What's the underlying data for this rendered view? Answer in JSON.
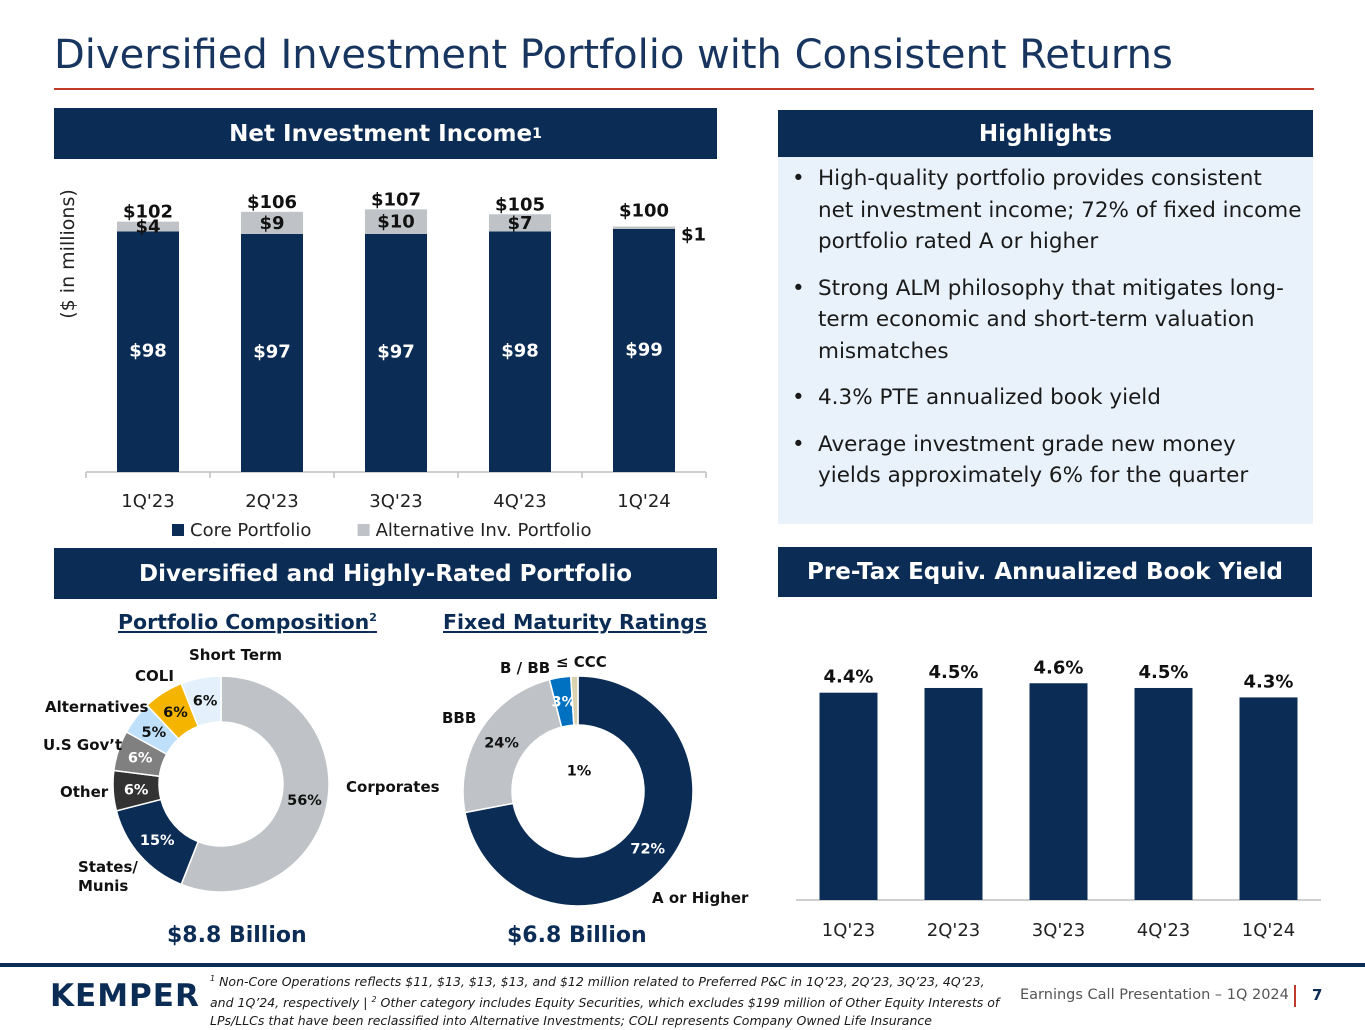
{
  "slide": {
    "title": "Diversified Investment Portfolio with Consistent Returns",
    "page_number": "7",
    "footer_text": "Earnings Call Presentation – 1Q 2024",
    "logo_text": "KEMPER",
    "footnote_1": "Non-Core Operations reflects $11, $13, $13, $13, and $12 million related to Preferred P&C in 1Q’23, 2Q’23, 3Q’23, 4Q’23, and 1Q’24, respectively | ",
    "footnote_2": "Other category includes Equity Securities, which excludes $199 million of Other Equity Interests of LPs/LLCs that have been reclassified into Alternative Investments; COLI represents Company Owned Life Insurance",
    "footnote_sup_1": "1",
    "footnote_sup_2": "2"
  },
  "sections": {
    "nii_title": "Net Investment Income",
    "nii_sup": "1",
    "highlights_title": "Highlights",
    "portfolio_title": "Diversified and Highly-Rated Portfolio",
    "yield_title": "Pre-Tax Equiv. Annualized Book Yield"
  },
  "highlights": [
    "High-quality portfolio provides consistent net investment income; 72% of fixed income portfolio rated A or higher",
    "Strong ALM philosophy that mitigates long-term economic and short-term valuation mismatches",
    "4.3% PTE annualized book yield",
    "Average investment grade new money yields approximately 6% for the quarter"
  ],
  "colors": {
    "navy": "#0b2c55",
    "gray": "#bfc3c7",
    "red_accent": "#c0392b",
    "light_blue_bg": "#e9f1fb"
  },
  "chart_data": [
    {
      "type": "bar",
      "stacked": true,
      "categories": [
        "1Q'23",
        "2Q'23",
        "3Q'23",
        "4Q'23",
        "1Q'24"
      ],
      "series": [
        {
          "name": "Core Portfolio",
          "values": [
            98,
            97,
            97,
            98,
            99
          ],
          "labels": [
            "$98",
            "$97",
            "$97",
            "$98",
            "$99"
          ],
          "color": "#0b2c55"
        },
        {
          "name": "Alternative Inv. Portfolio",
          "values": [
            4,
            9,
            10,
            7,
            1
          ],
          "labels": [
            "$4",
            "$9",
            "$10",
            "$7",
            "$1"
          ],
          "color": "#bfc3c7"
        }
      ],
      "totals": [
        "$102",
        "$106",
        "$107",
        "$105",
        "$100"
      ],
      "ylabel": "($ in millions)",
      "ylim": [
        0,
        110
      ],
      "legend": "bottom"
    },
    {
      "type": "pie",
      "donut": true,
      "title": "Portfolio Composition",
      "title_sup": "2",
      "total": "$8.8 Billion",
      "slices": [
        {
          "name": "Corporates",
          "value": 56,
          "label": "56%",
          "color": "#bfc3c7",
          "text_color": "#111111"
        },
        {
          "name": "States/ Munis",
          "value": 15,
          "label": "15%",
          "color": "#0b2c55",
          "text_color": "#ffffff"
        },
        {
          "name": "Other",
          "value": 6,
          "label": "6%",
          "color": "#333333",
          "text_color": "#ffffff"
        },
        {
          "name": "U.S Gov’t",
          "value": 6,
          "label": "6%",
          "color": "#808080",
          "text_color": "#ffffff"
        },
        {
          "name": "Alternatives",
          "value": 5,
          "label": "5%",
          "color": "#bfe0fb",
          "text_color": "#111111"
        },
        {
          "name": "COLI",
          "value": 6,
          "label": "6%",
          "color": "#f5b400",
          "text_color": "#111111"
        },
        {
          "name": "Short Term",
          "value": 6,
          "label": "6%",
          "color": "#e4f1fc",
          "text_color": "#111111"
        }
      ]
    },
    {
      "type": "pie",
      "donut": true,
      "title": "Fixed Maturity Ratings",
      "total": "$6.8 Billion",
      "slices": [
        {
          "name": "A or Higher",
          "value": 72,
          "label": "72%",
          "color": "#0b2c55",
          "text_color": "#ffffff"
        },
        {
          "name": "BBB",
          "value": 24,
          "label": "24%",
          "color": "#bfc3c7",
          "text_color": "#111111"
        },
        {
          "name": "B / BB",
          "value": 3,
          "label": "3%",
          "color": "#0070c0",
          "text_color": "#ffffff"
        },
        {
          "name": "≤ CCC",
          "value": 1,
          "label": "1%",
          "color": "#d9d2b0",
          "text_color": "#111111"
        }
      ]
    },
    {
      "type": "bar",
      "categories": [
        "1Q'23",
        "2Q'23",
        "3Q'23",
        "4Q'23",
        "1Q'24"
      ],
      "values": [
        4.4,
        4.5,
        4.6,
        4.5,
        4.3
      ],
      "labels": [
        "4.4%",
        "4.5%",
        "4.6%",
        "4.5%",
        "4.3%"
      ],
      "ylim": [
        0,
        5.2
      ]
    }
  ]
}
